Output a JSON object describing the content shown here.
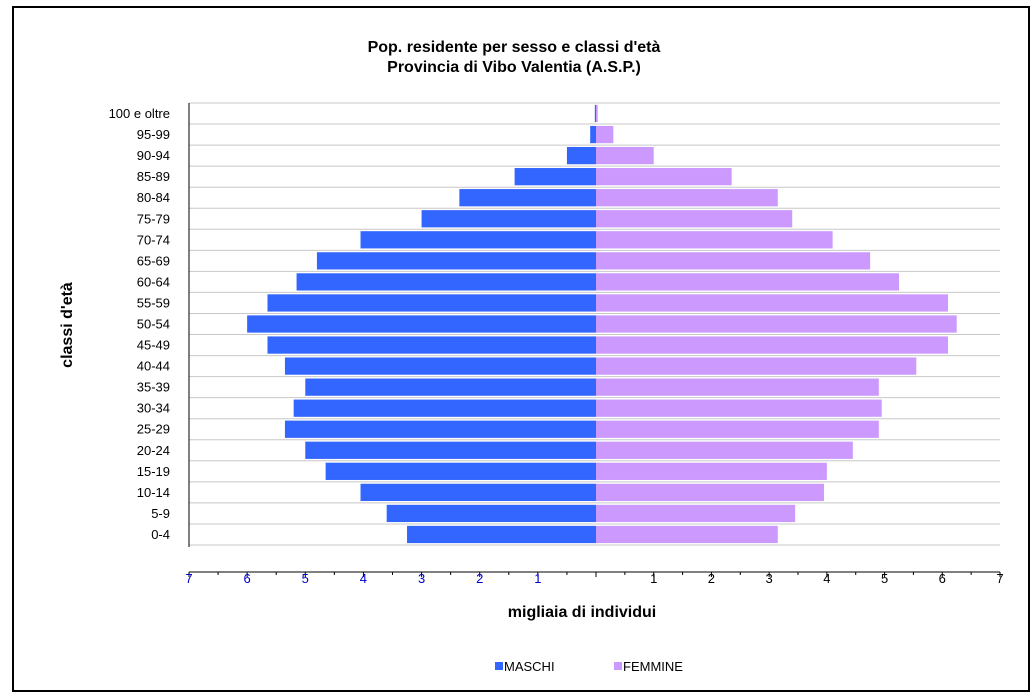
{
  "chart_data": {
    "type": "bar",
    "title": "Pop. residente per sesso e classi d'età",
    "subtitle": "Provincia di Vibo Valentia  (A.S.P.)",
    "xlabel": "migliaia di individui",
    "ylabel": "classi d'età",
    "xlim": [
      -7,
      7
    ],
    "xticks_left": [
      "7",
      "6",
      "5",
      "4",
      "3",
      "2",
      "1"
    ],
    "xticks_right": [
      "1",
      "2",
      "3",
      "4",
      "5",
      "6",
      "7"
    ],
    "grid": true,
    "legend_position": "bottom",
    "categories": [
      "0-4",
      "5-9",
      "10-14",
      "15-19",
      "20-24",
      "25-29",
      "30-34",
      "35-39",
      "40-44",
      "45-49",
      "50-54",
      "55-59",
      "60-64",
      "65-69",
      "70-74",
      "75-79",
      "80-84",
      "85-89",
      "90-94",
      "95-99",
      "100 e oltre"
    ],
    "series": [
      {
        "name": "MASCHI",
        "color": "#3366ff",
        "values": [
          3.25,
          3.6,
          4.05,
          4.65,
          5.0,
          5.35,
          5.2,
          5.0,
          5.35,
          5.65,
          6.0,
          5.65,
          5.15,
          4.8,
          4.05,
          3.0,
          2.35,
          1.4,
          0.5,
          0.1,
          0.02
        ]
      },
      {
        "name": "FEMMINE",
        "color": "#cc99ff",
        "values": [
          3.15,
          3.45,
          3.95,
          4.0,
          4.45,
          4.9,
          4.95,
          4.9,
          5.55,
          6.1,
          6.25,
          6.1,
          5.25,
          4.75,
          4.1,
          3.4,
          3.15,
          2.35,
          1.0,
          0.3,
          0.03
        ]
      }
    ]
  }
}
